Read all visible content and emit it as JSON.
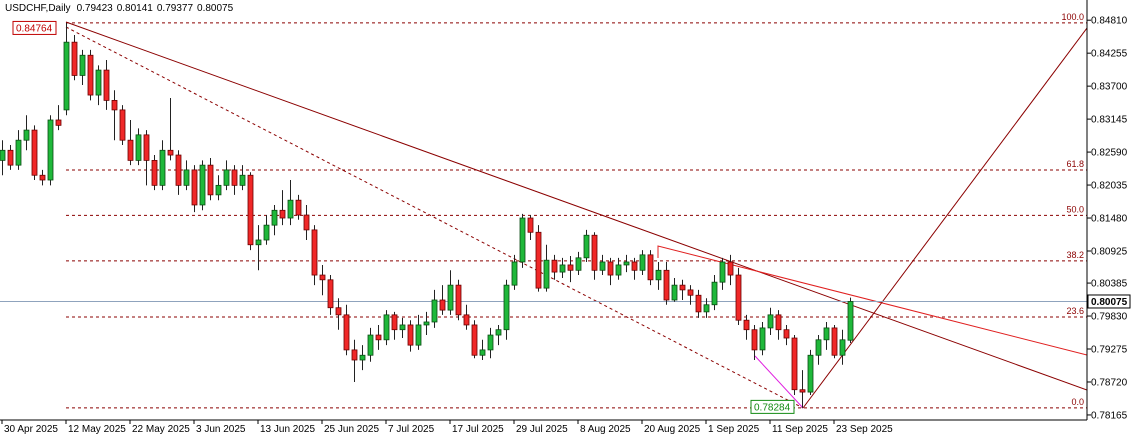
{
  "chart_data": {
    "type": "candlestick",
    "title": "USDCHF,Daily",
    "categories": [
      "30 Apr 2025",
      null,
      null,
      null,
      null,
      null,
      null,
      null,
      "12 May 2025",
      null,
      null,
      null,
      null,
      null,
      null,
      null,
      "22 May 2025",
      null,
      null,
      null,
      null,
      null,
      null,
      null,
      "3 Jun 2025",
      null,
      null,
      null,
      null,
      null,
      null,
      null,
      "13 Jun 2025",
      null,
      null,
      null,
      null,
      null,
      null,
      null,
      "25 Jun 2025",
      null,
      null,
      null,
      null,
      null,
      null,
      null,
      "7 Jul 2025",
      null,
      null,
      null,
      null,
      null,
      null,
      null,
      "17 Jul 2025",
      null,
      null,
      null,
      null,
      null,
      null,
      null,
      "29 Jul 2025",
      null,
      null,
      null,
      null,
      null,
      null,
      null,
      "8 Aug 2025",
      null,
      null,
      null,
      null,
      null,
      null,
      null,
      "20 Aug 2025",
      null,
      null,
      null,
      null,
      null,
      null,
      null,
      "1 Sep 2025",
      null,
      null,
      null,
      null,
      null,
      null,
      null,
      "11 Sep 2025",
      null,
      null,
      null,
      null,
      null,
      null,
      null,
      "23 Sep 2025",
      null,
      null
    ],
    "open": [
      0.8245,
      0.8262,
      0.8237,
      0.8279,
      0.8296,
      0.822,
      0.8212,
      0.8313,
      0.833,
      0.8444,
      0.8388,
      0.8422,
      0.8355,
      0.8397,
      0.8346,
      0.833,
      0.8279,
      0.8245,
      0.8288,
      0.8245,
      0.8203,
      0.8262,
      0.8254,
      0.8203,
      0.8229,
      0.817,
      0.8237,
      0.8187,
      0.8203,
      0.8229,
      0.8203,
      0.822,
      0.8103,
      0.8111,
      0.8136,
      0.8161,
      0.8148,
      0.8178,
      0.8153,
      0.8128,
      0.8052,
      0.8044,
      0.7997,
      0.7985,
      0.7926,
      0.7909,
      0.7917,
      0.7951,
      0.7943,
      0.7985,
      0.796,
      0.7968,
      0.7934,
      0.7968,
      0.7973,
      0.801,
      0.7993,
      0.8035,
      0.7985,
      0.7968,
      0.7917,
      0.7926,
      0.7951,
      0.796,
      0.8035,
      0.8074,
      0.8148,
      0.8124,
      0.803,
      0.8077,
      0.8057,
      0.8069,
      0.806,
      0.8081,
      0.8119,
      0.806,
      0.8074,
      0.8052,
      0.8069,
      0.8074,
      0.806,
      0.8086,
      0.8044,
      0.806,
      0.801,
      0.8035,
      0.8027,
      0.8018,
      0.799,
      0.8002,
      0.804,
      0.8074,
      0.8052,
      0.7976,
      0.796,
      0.7926,
      0.7963,
      0.7985,
      0.796,
      0.7946,
      0.7859,
      0.7855,
      0.7917,
      0.7943,
      0.7963,
      0.7917,
      0.79423
    ],
    "high": [
      0.8279,
      0.8271,
      0.8296,
      0.8321,
      0.8304,
      0.8229,
      0.8321,
      0.8338,
      0.84764,
      0.8456,
      0.8431,
      0.8431,
      0.8405,
      0.8414,
      0.8363,
      0.8338,
      0.8313,
      0.8299,
      0.8296,
      0.8254,
      0.8279,
      0.835,
      0.8262,
      0.8245,
      0.8237,
      0.8245,
      0.8249,
      0.822,
      0.8245,
      0.8237,
      0.8237,
      0.8225,
      0.8136,
      0.8153,
      0.817,
      0.8195,
      0.8212,
      0.8187,
      0.817,
      0.8136,
      0.8069,
      0.8052,
      0.8013,
      0.8002,
      0.7943,
      0.7934,
      0.7963,
      0.7968,
      0.7993,
      0.799,
      0.798,
      0.7976,
      0.7985,
      0.799,
      0.8027,
      0.8035,
      0.806,
      0.8044,
      0.8002,
      0.7976,
      0.7943,
      0.7963,
      0.7968,
      0.8044,
      0.8086,
      0.8155,
      0.8153,
      0.8136,
      0.8103,
      0.8086,
      0.8081,
      0.8084,
      0.8091,
      0.8128,
      0.8124,
      0.8086,
      0.8081,
      0.8081,
      0.8086,
      0.8081,
      0.8094,
      0.8094,
      0.8074,
      0.8074,
      0.8047,
      0.8044,
      0.8035,
      0.8027,
      0.8013,
      0.8052,
      0.8081,
      0.8086,
      0.8064,
      0.7985,
      0.7968,
      0.7973,
      0.7997,
      0.7993,
      0.7968,
      0.7951,
      0.7892,
      0.7926,
      0.7951,
      0.7973,
      0.7968,
      0.796,
      0.80141
    ],
    "low": [
      0.822,
      0.8229,
      0.8229,
      0.8262,
      0.8212,
      0.8203,
      0.8203,
      0.8296,
      0.8321,
      0.838,
      0.8372,
      0.8346,
      0.8338,
      0.833,
      0.8279,
      0.8271,
      0.8237,
      0.8237,
      0.8203,
      0.8195,
      0.8195,
      0.8245,
      0.8187,
      0.8195,
      0.8158,
      0.8161,
      0.8178,
      0.8178,
      0.8195,
      0.8187,
      0.8195,
      0.8094,
      0.806,
      0.8103,
      0.8119,
      0.8136,
      0.8136,
      0.8145,
      0.8111,
      0.8035,
      0.8018,
      0.7985,
      0.796,
      0.7917,
      0.7872,
      0.7892,
      0.7906,
      0.7926,
      0.7934,
      0.7943,
      0.7946,
      0.7923,
      0.7926,
      0.7951,
      0.7963,
      0.7985,
      0.7985,
      0.7976,
      0.796,
      0.7912,
      0.7909,
      0.7912,
      0.7934,
      0.7943,
      0.8027,
      0.8064,
      0.8111,
      0.8024,
      0.8024,
      0.8044,
      0.8047,
      0.804,
      0.8052,
      0.8074,
      0.8044,
      0.8052,
      0.8035,
      0.8044,
      0.8057,
      0.8044,
      0.8052,
      0.8035,
      0.8027,
      0.8002,
      0.8007,
      0.801,
      0.8002,
      0.798,
      0.798,
      0.7993,
      0.8027,
      0.8035,
      0.7968,
      0.7943,
      0.7909,
      0.7917,
      0.7951,
      0.7943,
      0.7934,
      0.785,
      0.78284,
      0.785,
      0.7901,
      0.7926,
      0.7912,
      0.7901,
      0.79377
    ],
    "close": [
      0.8262,
      0.8237,
      0.8279,
      0.8296,
      0.822,
      0.8212,
      0.8313,
      0.8304,
      0.8444,
      0.8388,
      0.8422,
      0.8355,
      0.8397,
      0.8346,
      0.833,
      0.8279,
      0.8245,
      0.8288,
      0.8245,
      0.8203,
      0.8262,
      0.8254,
      0.8203,
      0.8229,
      0.817,
      0.8237,
      0.8187,
      0.8203,
      0.8229,
      0.8203,
      0.822,
      0.8103,
      0.8111,
      0.8136,
      0.8161,
      0.8148,
      0.8178,
      0.8153,
      0.8128,
      0.8052,
      0.8044,
      0.7997,
      0.7985,
      0.7926,
      0.7909,
      0.7917,
      0.7951,
      0.7943,
      0.7985,
      0.796,
      0.7968,
      0.7934,
      0.7968,
      0.7973,
      0.801,
      0.7993,
      0.8035,
      0.7985,
      0.7968,
      0.7917,
      0.7926,
      0.7951,
      0.796,
      0.8035,
      0.8074,
      0.8148,
      0.8124,
      0.803,
      0.8077,
      0.8057,
      0.8069,
      0.806,
      0.8081,
      0.8119,
      0.806,
      0.8074,
      0.8052,
      0.8069,
      0.8074,
      0.806,
      0.8086,
      0.8044,
      0.806,
      0.801,
      0.8035,
      0.8027,
      0.8018,
      0.799,
      0.8002,
      0.804,
      0.8074,
      0.8052,
      0.7976,
      0.796,
      0.7926,
      0.7963,
      0.7985,
      0.796,
      0.7946,
      0.7859,
      0.7855,
      0.7917,
      0.7943,
      0.7963,
      0.7917,
      0.7943,
      0.80075
    ],
    "up_color": "#1fb83a",
    "down_color": "#f02828",
    "ylim": [
      0.7808,
      0.8515
    ],
    "yticks": [
      {
        "value": 0.8481,
        "label": "0.84810"
      },
      {
        "value": 0.84255,
        "label": "0.84255"
      },
      {
        "value": 0.837,
        "label": "0.83700"
      },
      {
        "value": 0.83145,
        "label": "0.83145"
      },
      {
        "value": 0.8259,
        "label": "0.82590"
      },
      {
        "value": 0.82035,
        "label": "0.82035"
      },
      {
        "value": 0.8148,
        "label": "0.81480"
      },
      {
        "value": 0.80925,
        "label": "0.80925"
      },
      {
        "value": 0.80385,
        "label": "0.80385"
      },
      {
        "value": 0.7983,
        "label": "0.79830"
      },
      {
        "value": 0.79275,
        "label": "0.79275"
      },
      {
        "value": 0.7872,
        "label": "0.78720"
      },
      {
        "value": 0.78165,
        "label": "0.78165"
      }
    ],
    "fibonacci": {
      "high": 0.84764,
      "low": 0.78284,
      "color": "#8b0000",
      "levels": [
        {
          "value": 100,
          "label": "100.0"
        },
        {
          "value": 61.8,
          "label": "61.8"
        },
        {
          "value": 50,
          "label": "50.0"
        },
        {
          "value": 38.2,
          "label": "38.2"
        },
        {
          "value": 23.6,
          "label": "23.6"
        },
        {
          "value": 0,
          "label": "0.0"
        }
      ]
    },
    "grid": false
  }
}
